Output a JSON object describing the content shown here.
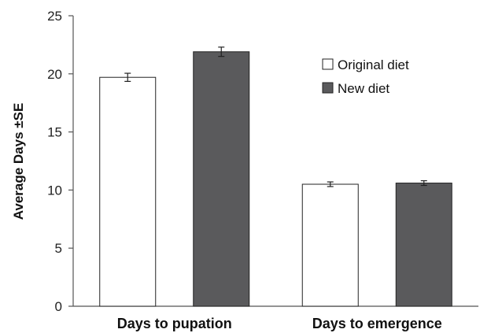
{
  "chart_data": {
    "type": "bar",
    "categories": [
      "Days to pupation",
      "Days to emergence"
    ],
    "series": [
      {
        "name": "Original diet",
        "values": [
          19.7,
          10.5
        ],
        "errors": [
          0.35,
          0.2
        ],
        "color": "#ffffff"
      },
      {
        "name": "New diet",
        "values": [
          21.9,
          10.6
        ],
        "errors": [
          0.4,
          0.2
        ],
        "color": "#5a5a5c"
      }
    ],
    "title": "",
    "xlabel": "",
    "ylabel": "Average Days ±SE",
    "ylim": [
      0,
      25
    ],
    "yticks": [
      "0",
      "5",
      "10",
      "15",
      "20",
      "25"
    ],
    "legend_position": "top-right",
    "grid": false
  }
}
